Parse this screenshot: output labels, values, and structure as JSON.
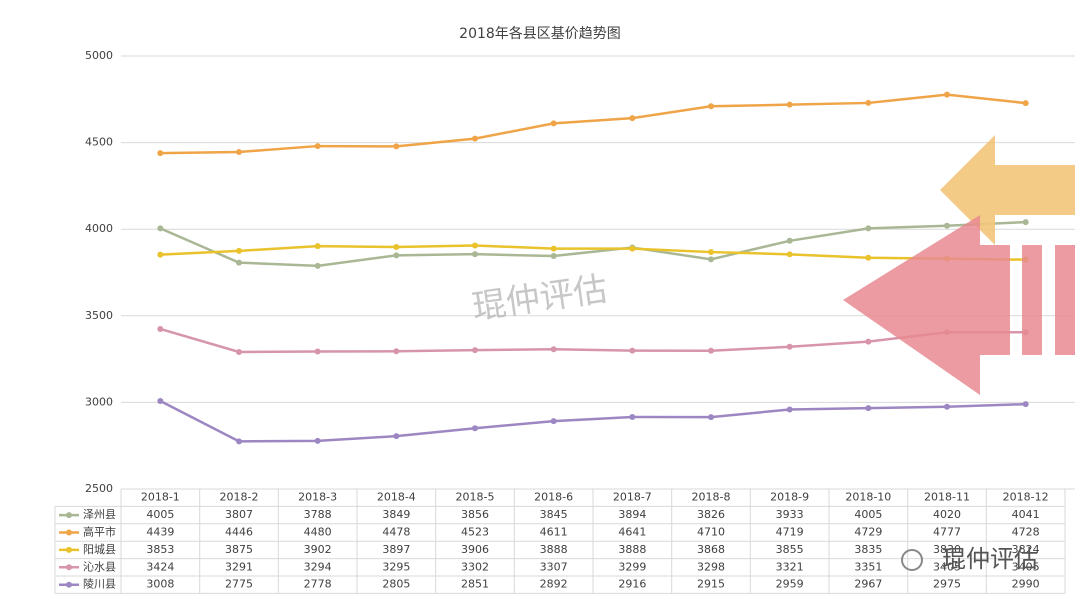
{
  "chart_data": {
    "type": "line",
    "title": "2018年各县区基价趋势图",
    "categories": [
      "2018-1",
      "2018-2",
      "2018-3",
      "2018-4",
      "2018-5",
      "2018-6",
      "2018-7",
      "2018-8",
      "2018-9",
      "2018-10",
      "2018-11",
      "2018-12"
    ],
    "series": [
      {
        "name": "泽州县",
        "color": "#a9b795",
        "values": [
          4005,
          3807,
          3788,
          3849,
          3856,
          3845,
          3894,
          3826,
          3933,
          4005,
          4020,
          4041
        ]
      },
      {
        "name": "高平市",
        "color": "#f0a448",
        "values": [
          4439,
          4446,
          4480,
          4478,
          4523,
          4611,
          4641,
          4710,
          4719,
          4729,
          4777,
          4728
        ]
      },
      {
        "name": "阳城县",
        "color": "#e9c22c",
        "values": [
          3853,
          3875,
          3902,
          3897,
          3906,
          3888,
          3888,
          3868,
          3855,
          3835,
          3830,
          3824
        ]
      },
      {
        "name": "沁水县",
        "color": "#d795aa",
        "values": [
          3424,
          3291,
          3294,
          3295,
          3302,
          3307,
          3299,
          3298,
          3321,
          3351,
          3405,
          3405
        ]
      },
      {
        "name": "陵川县",
        "color": "#9d87c2",
        "values": [
          3008,
          2775,
          2778,
          2805,
          2851,
          2892,
          2916,
          2915,
          2959,
          2967,
          2975,
          2990
        ]
      }
    ],
    "ylim": [
      2500,
      5000
    ],
    "yticks": [
      2500,
      3000,
      3500,
      4000,
      4500,
      5000
    ],
    "grid": true
  },
  "watermark": "琨仲评估",
  "wechat_mark": "琨仲评估"
}
